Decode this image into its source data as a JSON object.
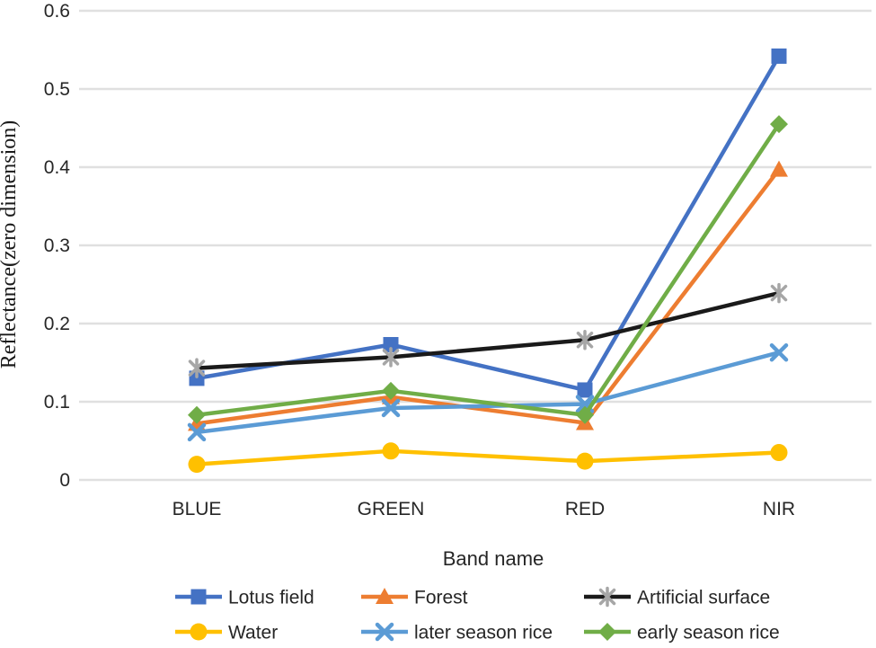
{
  "chart_data": {
    "type": "line",
    "title": "",
    "xlabel": "Band name",
    "ylabel": "Reflectance(zero dimension)",
    "categories": [
      "BLUE",
      "GREEN",
      "RED",
      "NIR"
    ],
    "ylim": [
      0,
      0.6
    ],
    "yticks": [
      0,
      0.1,
      0.2,
      0.3,
      0.4,
      0.5,
      0.6
    ],
    "ytick_labels": [
      "0",
      "0.1",
      "0.2",
      "0.3",
      "0.4",
      "0.5",
      "0.6"
    ],
    "grid": true,
    "legend_position": "bottom",
    "legend_rows": 2,
    "legend_columns": 3,
    "series": [
      {
        "name": "Lotus field",
        "color": "#4472C4",
        "marker": "square",
        "values": [
          0.13,
          0.173,
          0.115,
          0.542
        ]
      },
      {
        "name": "Forest",
        "color": "#ED7D31",
        "marker": "triangle",
        "values": [
          0.072,
          0.106,
          0.073,
          0.397
        ]
      },
      {
        "name": "Artificial surface",
        "color": "#1A1A1A",
        "marker": "asterisk",
        "marker_color": "#A6A6A6",
        "values": [
          0.143,
          0.157,
          0.179,
          0.239
        ]
      },
      {
        "name": "Water",
        "color": "#FFC000",
        "marker": "circle",
        "values": [
          0.02,
          0.037,
          0.024,
          0.035
        ]
      },
      {
        "name": "later season rice",
        "color": "#5B9BD5",
        "marker": "x",
        "values": [
          0.061,
          0.092,
          0.097,
          0.163
        ]
      },
      {
        "name": "early season rice",
        "color": "#70AD47",
        "marker": "diamond",
        "values": [
          0.083,
          0.114,
          0.083,
          0.455
        ]
      }
    ]
  }
}
